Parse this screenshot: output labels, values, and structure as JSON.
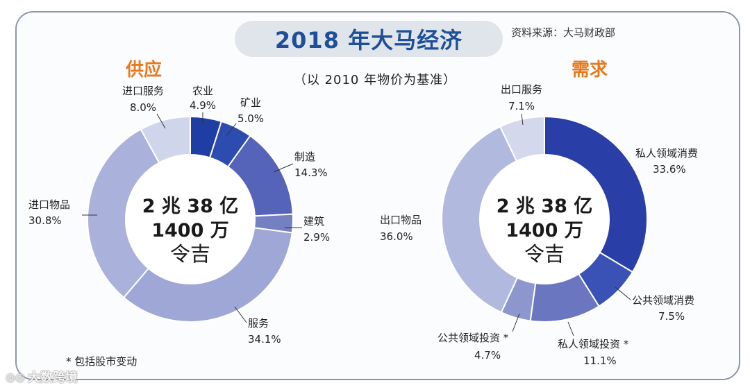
{
  "title": "2018 年大马经济",
  "source": "资料来源：大马财政部",
  "subtitle": "（以 2010 年物价为基准）",
  "footnote": "* 包括股市变动",
  "watermark": "大数跨境",
  "chart_data": [
    {
      "type": "pie",
      "title": "供应",
      "center_text": [
        "2 兆 38 亿",
        "1400 万",
        "令吉"
      ],
      "slices": [
        {
          "label": "农业",
          "value": 4.9,
          "display": "4.9%",
          "color": "#1f3ea3"
        },
        {
          "label": "矿业",
          "value": 5.0,
          "display": "5.0%",
          "color": "#2d4cb0"
        },
        {
          "label": "制造",
          "value": 14.3,
          "display": "14.3%",
          "color": "#5564b8"
        },
        {
          "label": "建筑",
          "value": 2.9,
          "display": "2.9%",
          "color": "#7480c2"
        },
        {
          "label": "服务",
          "value": 34.1,
          "display": "34.1%",
          "color": "#9ea7d6"
        },
        {
          "label": "进口物品",
          "value": 30.8,
          "display": "30.8%",
          "color": "#aab2db"
        },
        {
          "label": "进口服务",
          "value": 8.0,
          "display": "8.0%",
          "color": "#cfd5ea"
        }
      ]
    },
    {
      "type": "pie",
      "title": "需求",
      "center_text": [
        "2 兆 38 亿",
        "1400 万",
        "令吉"
      ],
      "slices": [
        {
          "label": "私人领域消费",
          "value": 33.6,
          "display": "33.6%",
          "color": "#2a3ea7"
        },
        {
          "label": "公共领域消费",
          "value": 7.5,
          "display": "7.5%",
          "color": "#3a52b5"
        },
        {
          "label": "私人领域投资 *",
          "value": 11.1,
          "display": "11.1%",
          "color": "#6a76c0"
        },
        {
          "label": "公共领域投资 *",
          "value": 4.7,
          "display": "4.7%",
          "color": "#8d97cd"
        },
        {
          "label": "出口物品",
          "value": 36.0,
          "display": "36.0%",
          "color": "#b2b9de"
        },
        {
          "label": "出口服务",
          "value": 7.1,
          "display": "7.1%",
          "color": "#d3d8ec"
        }
      ]
    }
  ]
}
